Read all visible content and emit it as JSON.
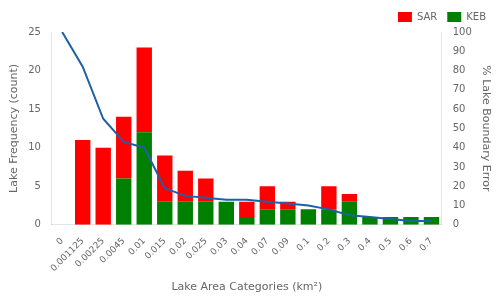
{
  "chart_data": {
    "type": "bar",
    "stacked": true,
    "xlabel": "Lake Area Categories (km²)",
    "ylabel": "Lake Frequency (count)",
    "y2label": "% Lake Boundary Error",
    "categories": [
      "0",
      "0.001125",
      "0.00225",
      "0.0045",
      "0.01",
      "0.015",
      "0.02",
      "0.025",
      "0.03",
      "0.04",
      "0.07",
      "0.09",
      "0.1",
      "0.2",
      "0.3",
      "0.4",
      "0.5",
      "0.6",
      "0.7"
    ],
    "series": [
      {
        "name": "KEB",
        "color": "#008000",
        "values": [
          0,
          0,
          0,
          6,
          12,
          3,
          3,
          3,
          3,
          1,
          2,
          2,
          2,
          2,
          3,
          1,
          1,
          1,
          1
        ]
      },
      {
        "name": "SAR",
        "color": "#ff0000",
        "values": [
          0,
          11,
          10,
          8,
          11,
          6,
          4,
          3,
          0,
          2,
          3,
          1,
          0,
          3,
          1,
          0,
          0,
          0,
          0
        ]
      },
      {
        "type": "line",
        "color": "#1f5fa6",
        "axis": "y2",
        "values": [
          100,
          82,
          55,
          43,
          40,
          19,
          15,
          14,
          13,
          13,
          12,
          11,
          10,
          8,
          5,
          4,
          3,
          2,
          2
        ]
      }
    ],
    "ylim": [
      0,
      25
    ],
    "yticks": [
      0,
      5,
      10,
      15,
      20,
      25
    ],
    "y2lim": [
      0,
      100
    ],
    "y2ticks": [
      0,
      10,
      20,
      30,
      40,
      50,
      60,
      70,
      80,
      90,
      100
    ],
    "grid": false,
    "legend": "upper right"
  }
}
